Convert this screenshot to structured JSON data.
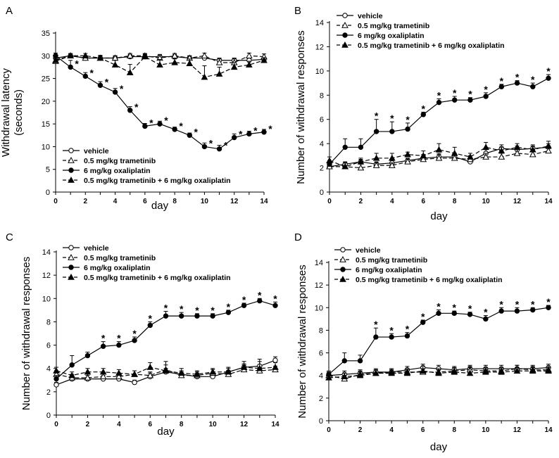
{
  "colors": {
    "ink": "#000000",
    "background": "#ffffff"
  },
  "legend": {
    "vehicle": "vehicle",
    "tram": "0.5 mg/kg trametinib",
    "oxa": "6 mg/kg oxaliplatin",
    "combo": "0.5 mg/kg trametinib + 6 mg/kg oxaliplatin"
  },
  "chart_data": [
    {
      "panel": "A",
      "type": "line",
      "xlabel": "day",
      "ylabel": [
        "Withdrawal latency",
        "(seconds)"
      ],
      "xlim": [
        0,
        14
      ],
      "ylim": [
        0,
        35
      ],
      "xticks": [
        0,
        2,
        4,
        6,
        8,
        10,
        12,
        14
      ],
      "yticks": [
        0,
        5,
        10,
        15,
        20,
        25,
        30,
        35
      ],
      "legend_position": "bottom-left",
      "x": [
        0,
        1,
        2,
        3,
        4,
        5,
        6,
        7,
        8,
        9,
        10,
        11,
        12,
        13,
        14
      ],
      "series": [
        {
          "key": "vehicle",
          "name": "vehicle",
          "marker": "open-circle",
          "dash": "solid",
          "values": [
            29.5,
            30,
            29.5,
            29.5,
            29.5,
            29.8,
            29.8,
            29.8,
            29.8,
            29.5,
            29.5,
            29,
            29,
            29,
            29.2
          ],
          "err": [
            0.6,
            0.5,
            0.5,
            0.5,
            0.5,
            0.5,
            0.5,
            0.5,
            0.5,
            0.5,
            0.5,
            0.5,
            0.5,
            0.5,
            0.5
          ]
        },
        {
          "key": "tram",
          "name": "0.5 mg/kg trametinib",
          "marker": "open-triangle",
          "dash": "dashed",
          "values": [
            28.8,
            30,
            29.5,
            29.5,
            29.5,
            30,
            30,
            29.5,
            30,
            29.5,
            30,
            28.5,
            28.5,
            30,
            29.8
          ],
          "err": [
            0.6,
            0.5,
            0.5,
            0.5,
            0.5,
            0.5,
            0.5,
            0.5,
            0.5,
            0.5,
            0.6,
            0.8,
            0.8,
            0.6,
            0.6
          ]
        },
        {
          "key": "oxa",
          "name": "6 mg/kg oxaliplatin",
          "marker": "filled-circle",
          "dash": "solid",
          "values": [
            30,
            27.5,
            25.5,
            23.5,
            22,
            18,
            14.5,
            15,
            13.8,
            12.5,
            10,
            9.5,
            12,
            12.8,
            13.2
          ],
          "err": [
            0.6,
            1.5,
            0.8,
            0.8,
            0.8,
            0.8,
            0.6,
            0.6,
            0.5,
            0.5,
            0.8,
            0.8,
            0.8,
            0.6,
            0.6
          ],
          "sig": [
            false,
            true,
            true,
            true,
            true,
            true,
            true,
            true,
            true,
            true,
            true,
            true,
            true,
            true,
            true
          ]
        },
        {
          "key": "combo",
          "name": "0.5 mg/kg trametinib + 6 mg/kg oxaliplatin",
          "marker": "filled-triangle",
          "dash": "dashed",
          "values": [
            29,
            30,
            30,
            29.5,
            28,
            26.3,
            29.8,
            28,
            28.5,
            28.3,
            25.3,
            26,
            27.5,
            28,
            29
          ],
          "err": [
            0.6,
            0.5,
            0.5,
            0.6,
            1,
            1.8,
            0.6,
            1.2,
            0.8,
            1,
            2.5,
            1.5,
            1,
            0.8,
            0.6
          ]
        }
      ]
    },
    {
      "panel": "B",
      "type": "line",
      "xlabel": "day",
      "ylabel": [
        "Number of withdrawal responses"
      ],
      "xlim": [
        0,
        14
      ],
      "ylim": [
        0,
        14
      ],
      "xticks": [
        0,
        2,
        4,
        6,
        8,
        10,
        12,
        14
      ],
      "yticks": [
        0,
        2,
        4,
        6,
        8,
        10,
        12,
        14
      ],
      "legend_position": "top-left",
      "x": [
        0,
        1,
        2,
        3,
        4,
        5,
        6,
        7,
        8,
        9,
        10,
        11,
        12,
        13,
        14
      ],
      "series": [
        {
          "key": "vehicle",
          "name": "vehicle",
          "marker": "open-circle",
          "dash": "solid",
          "values": [
            2.1,
            2.3,
            2.5,
            2.3,
            2.4,
            2.6,
            2.8,
            2.9,
            2.9,
            2.5,
            3.2,
            3.6,
            3.5,
            3.6,
            3.7
          ],
          "err": [
            0.2,
            0.2,
            0.2,
            0.2,
            0.2,
            0.2,
            0.3,
            0.3,
            0.3,
            0.3,
            0.3,
            0.3,
            0.3,
            0.3,
            0.3
          ]
        },
        {
          "key": "tram",
          "name": "0.5 mg/kg trametinib",
          "marker": "open-triangle",
          "dash": "dashed",
          "values": [
            2.1,
            2.1,
            2.0,
            2.2,
            2.2,
            2.5,
            2.7,
            2.8,
            2.8,
            2.7,
            2.9,
            2.9,
            3.2,
            3.1,
            3.4
          ],
          "err": [
            0.2,
            0.3,
            0.3,
            0.2,
            0.2,
            0.2,
            0.3,
            0.3,
            0.3,
            0.3,
            0.3,
            0.3,
            0.3,
            0.3,
            0.3
          ]
        },
        {
          "key": "oxa",
          "name": "6 mg/kg oxaliplatin",
          "marker": "filled-circle",
          "dash": "solid",
          "values": [
            2.3,
            3.7,
            3.7,
            5.0,
            5.0,
            5.2,
            6.4,
            7.4,
            7.6,
            7.6,
            7.9,
            8.7,
            9.0,
            8.7,
            9.4
          ],
          "err": [
            0.3,
            0.7,
            0.7,
            1.0,
            0.8,
            0.5,
            0.2,
            0.3,
            0.3,
            0.2,
            0.3,
            0.2,
            0.2,
            0.3,
            0.3
          ],
          "sig": [
            false,
            false,
            false,
            true,
            true,
            true,
            true,
            true,
            true,
            true,
            true,
            true,
            true,
            true,
            true
          ]
        },
        {
          "key": "combo",
          "name": "0.5 mg/kg trametinib + 6 mg/kg oxaliplatin",
          "marker": "filled-triangle",
          "dash": "dashed",
          "values": [
            2.6,
            2.1,
            2.5,
            2.8,
            2.8,
            3.1,
            3.0,
            3.5,
            3.2,
            2.9,
            3.7,
            3.4,
            3.7,
            3.5,
            3.8
          ],
          "err": [
            0.3,
            0.3,
            0.3,
            0.4,
            0.4,
            0.2,
            0.4,
            0.5,
            0.5,
            0.3,
            0.4,
            0.3,
            0.3,
            0.3,
            0.4
          ]
        }
      ]
    },
    {
      "panel": "C",
      "type": "line",
      "xlabel": "day",
      "ylabel": [
        "Number of withdrawal responses"
      ],
      "xlim": [
        0,
        14
      ],
      "ylim": [
        0,
        14
      ],
      "xticks": [
        0,
        2,
        4,
        6,
        8,
        10,
        12,
        14
      ],
      "yticks": [
        0,
        2,
        4,
        6,
        8,
        10,
        12,
        14
      ],
      "legend_position": "top-left",
      "x": [
        0,
        1,
        2,
        3,
        4,
        5,
        6,
        7,
        8,
        9,
        10,
        11,
        12,
        13,
        14
      ],
      "series": [
        {
          "key": "vehicle",
          "name": "vehicle",
          "marker": "open-circle",
          "dash": "solid",
          "values": [
            2.6,
            3.1,
            3.1,
            3.1,
            3.1,
            2.8,
            3.3,
            3.7,
            3.5,
            3.3,
            3.3,
            3.7,
            4.1,
            4.2,
            4.7
          ],
          "err": [
            0.2,
            0.3,
            0.3,
            0.3,
            0.3,
            0.2,
            0.3,
            0.3,
            0.3,
            0.3,
            0.3,
            0.3,
            0.3,
            0.4,
            0.3
          ]
        },
        {
          "key": "tram",
          "name": "0.5 mg/kg trametinib",
          "marker": "open-triangle",
          "dash": "dashed",
          "values": [
            3.5,
            3.2,
            3.2,
            3.3,
            3.3,
            3.5,
            3.4,
            3.9,
            3.4,
            3.4,
            3.6,
            3.5,
            3.9,
            3.8,
            3.9
          ],
          "err": [
            0.3,
            0.3,
            0.3,
            0.3,
            0.3,
            0.3,
            0.3,
            0.4,
            0.3,
            0.3,
            0.3,
            0.3,
            0.4,
            0.3,
            0.3
          ]
        },
        {
          "key": "oxa",
          "name": "6 mg/kg oxaliplatin",
          "marker": "filled-circle",
          "dash": "solid",
          "values": [
            3.1,
            4.3,
            5.1,
            5.9,
            6.0,
            6.4,
            7.7,
            8.5,
            8.5,
            8.5,
            8.5,
            8.8,
            9.4,
            9.8,
            9.4
          ],
          "err": [
            0.3,
            0.8,
            0.3,
            0.4,
            0.3,
            0.3,
            0.3,
            0.4,
            0.3,
            0.2,
            0.2,
            0.2,
            0.2,
            0.2,
            0.3
          ],
          "sig": [
            false,
            false,
            false,
            true,
            true,
            true,
            true,
            true,
            true,
            true,
            true,
            true,
            true,
            true,
            true
          ]
        },
        {
          "key": "combo",
          "name": "0.5 mg/kg trametinib + 6 mg/kg oxaliplatin",
          "marker": "filled-triangle",
          "dash": "dashed",
          "values": [
            3.8,
            3.4,
            3.7,
            3.7,
            3.6,
            3.5,
            4.1,
            3.8,
            3.6,
            3.5,
            3.7,
            3.7,
            4.1,
            4.0,
            4.1
          ],
          "err": [
            0.3,
            0.3,
            0.3,
            0.3,
            0.3,
            0.3,
            0.4,
            0.8,
            0.4,
            0.3,
            0.3,
            0.4,
            0.5,
            0.8,
            0.4
          ]
        }
      ]
    },
    {
      "panel": "D",
      "type": "line",
      "xlabel": "day",
      "ylabel": [
        "Number of withdrawal responses"
      ],
      "xlim": [
        0,
        14
      ],
      "ylim": [
        0,
        14
      ],
      "xticks": [
        0,
        2,
        4,
        6,
        8,
        10,
        12,
        14
      ],
      "yticks": [
        0,
        2,
        4,
        6,
        8,
        10,
        12,
        14
      ],
      "legend_position": "top-left",
      "x": [
        0,
        1,
        2,
        3,
        4,
        5,
        6,
        7,
        8,
        9,
        10,
        11,
        12,
        13,
        14
      ],
      "series": [
        {
          "key": "vehicle",
          "name": "vehicle",
          "marker": "open-circle",
          "dash": "solid",
          "values": [
            4.0,
            4.1,
            4.2,
            4.3,
            4.3,
            4.5,
            4.7,
            4.6,
            4.5,
            4.6,
            4.6,
            4.6,
            4.6,
            4.6,
            4.7
          ],
          "err": [
            0.3,
            0.3,
            0.3,
            0.3,
            0.3,
            0.3,
            0.3,
            0.3,
            0.3,
            0.3,
            0.3,
            0.3,
            0.3,
            0.3,
            0.3
          ]
        },
        {
          "key": "tram",
          "name": "0.5 mg/kg trametinib",
          "marker": "open-triangle",
          "dash": "dashed",
          "values": [
            4.0,
            3.7,
            4.1,
            4.2,
            4.3,
            4.3,
            4.3,
            4.3,
            4.4,
            4.5,
            4.4,
            4.4,
            4.6,
            4.5,
            4.5
          ],
          "err": [
            0.3,
            0.3,
            0.3,
            0.3,
            0.3,
            0.3,
            0.3,
            0.3,
            0.3,
            0.3,
            0.3,
            0.3,
            0.3,
            0.3,
            0.3
          ]
        },
        {
          "key": "oxa",
          "name": "6 mg/kg oxaliplatin",
          "marker": "filled-circle",
          "dash": "solid",
          "values": [
            4.1,
            5.3,
            5.3,
            7.4,
            7.4,
            7.5,
            8.7,
            9.5,
            9.5,
            9.4,
            9.0,
            9.7,
            9.7,
            9.8,
            10.0
          ],
          "err": [
            0.3,
            0.7,
            0.5,
            0.8,
            0.3,
            0.3,
            0.2,
            0.3,
            0.2,
            0.2,
            0.3,
            0.3,
            0.3,
            0.2,
            0.2
          ],
          "sig": [
            false,
            false,
            false,
            true,
            true,
            true,
            true,
            true,
            true,
            true,
            true,
            true,
            true,
            true,
            true
          ]
        },
        {
          "key": "combo",
          "name": "0.5 mg/kg trametinib + 6 mg/kg oxaliplatin",
          "marker": "filled-triangle",
          "dash": "dashed",
          "values": [
            3.8,
            3.9,
            4.0,
            4.2,
            4.2,
            4.2,
            4.4,
            4.2,
            4.3,
            4.2,
            4.3,
            4.3,
            4.4,
            4.4,
            4.4
          ],
          "err": [
            0.3,
            0.3,
            0.3,
            0.3,
            0.3,
            0.3,
            0.4,
            0.3,
            0.4,
            0.5,
            0.3,
            0.3,
            0.3,
            0.3,
            0.3
          ]
        }
      ]
    }
  ]
}
